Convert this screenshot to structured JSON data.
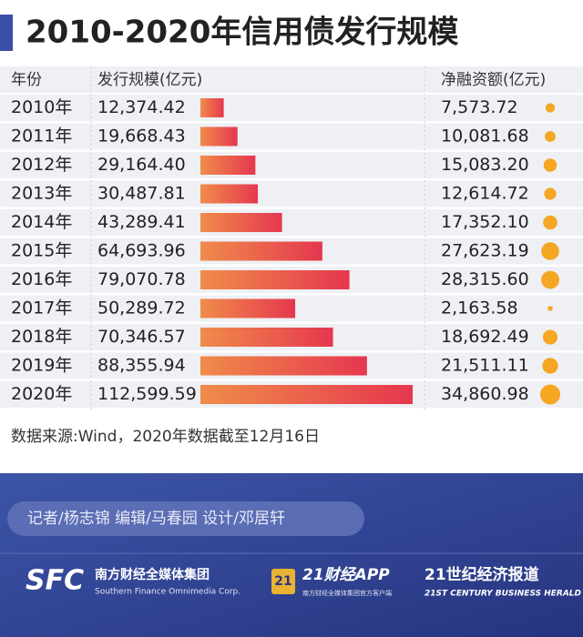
{
  "title": "2010-2020年信用债发行规模",
  "headers": {
    "year": "年份",
    "issuance": "发行规模(亿元)",
    "net": "净融资额(亿元)"
  },
  "rows": [
    {
      "year": "2010年",
      "issuance": {
        "value": 12374.42,
        "label": "12,374.42"
      },
      "net": {
        "value": 7573.72,
        "label": "7,573.72"
      }
    },
    {
      "year": "2011年",
      "issuance": {
        "value": 19668.43,
        "label": "19,668.43"
      },
      "net": {
        "value": 10081.68,
        "label": "10,081.68"
      }
    },
    {
      "year": "2012年",
      "issuance": {
        "value": 29164.4,
        "label": "29,164.40"
      },
      "net": {
        "value": 15083.2,
        "label": "15,083.20"
      }
    },
    {
      "year": "2013年",
      "issuance": {
        "value": 30487.81,
        "label": "30,487.81"
      },
      "net": {
        "value": 12614.72,
        "label": "12,614.72"
      }
    },
    {
      "year": "2014年",
      "issuance": {
        "value": 43289.41,
        "label": "43,289.41"
      },
      "net": {
        "value": 17352.1,
        "label": "17,352.10"
      }
    },
    {
      "year": "2015年",
      "issuance": {
        "value": 64693.96,
        "label": "64,693.96"
      },
      "net": {
        "value": 27623.19,
        "label": "27,623.19"
      }
    },
    {
      "year": "2016年",
      "issuance": {
        "value": 79070.78,
        "label": "79,070.78"
      },
      "net": {
        "value": 28315.6,
        "label": "28,315.60"
      }
    },
    {
      "year": "2017年",
      "issuance": {
        "value": 50289.72,
        "label": "50,289.72"
      },
      "net": {
        "value": 2163.58,
        "label": "2,163.58"
      }
    },
    {
      "year": "2018年",
      "issuance": {
        "value": 70346.57,
        "label": "70,346.57"
      },
      "net": {
        "value": 18692.49,
        "label": "18,692.49"
      }
    },
    {
      "year": "2019年",
      "issuance": {
        "value": 88355.94,
        "label": "88,355.94"
      },
      "net": {
        "value": 21511.11,
        "label": "21,511.11"
      }
    },
    {
      "year": "2020年",
      "issuance": {
        "value": 112599.59,
        "label": "112,599.59"
      },
      "net": {
        "value": 34860.98,
        "label": "34,860.98"
      }
    }
  ],
  "source": "数据来源:Wind，2020年数据截至12月16日",
  "credits": "记者/杨志锦  编辑/马春园  设计/邓居轩",
  "footer": {
    "sfc": "SFC",
    "group_cn": "南方财经全媒体集团",
    "group_en": "Southern Finance Omnimedia Corp.",
    "app_badge": "21",
    "app": "21财经APP",
    "app_sub": "南方财经全媒体集团官方客户端",
    "herald_cn": "21世纪经济报道",
    "herald_en": "21ST CENTURY BUSINESS HERALD"
  }
}
